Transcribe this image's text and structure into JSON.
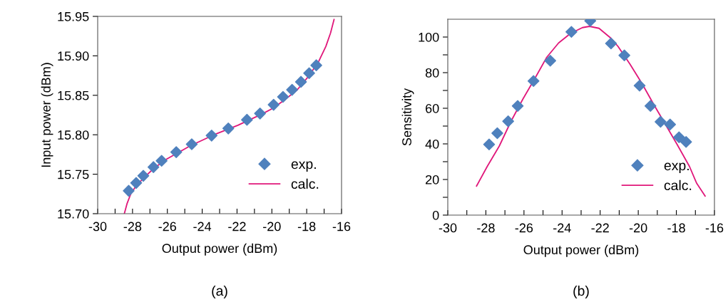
{
  "chart_data": [
    {
      "type": "scatter",
      "xlabel": "Output power (dBm)",
      "ylabel": "Input power (dBm)",
      "annotations": [
        "(a)"
      ],
      "xlim": [
        -30,
        -16
      ],
      "ylim": [
        15.7,
        15.95
      ],
      "xticks": [
        -30,
        {
          "value": -29,
          "label": null
        },
        -28,
        {
          "value": -27,
          "label": null
        },
        -26,
        {
          "value": -25,
          "label": null
        },
        -24,
        {
          "value": -23,
          "label": null
        },
        -22,
        {
          "value": -21,
          "label": null
        },
        -20,
        {
          "value": -19,
          "label": null
        },
        -18,
        {
          "value": -17,
          "label": null
        },
        -16
      ],
      "yticks": [
        {
          "value": 15.7,
          "label": "15.70"
        },
        15.75,
        {
          "value": 15.8,
          "label": "15.80"
        },
        15.85,
        {
          "value": 15.9,
          "label": "15.90"
        },
        15.95
      ],
      "grid": false,
      "legend": "bottom right",
      "series": [
        {
          "name": "exp.",
          "marker": "diamond",
          "color": "#4f81bd",
          "x": [
            -28.22,
            -27.79,
            -27.38,
            -26.8,
            -26.33,
            -25.49,
            -24.6,
            -23.46,
            -22.5,
            -21.43,
            -20.68,
            -19.9,
            -19.36,
            -18.84,
            -18.33,
            -17.86,
            -17.45
          ],
          "values": [
            15.729,
            15.739,
            15.748,
            15.759,
            15.767,
            15.778,
            15.788,
            15.799,
            15.808,
            15.819,
            15.827,
            15.838,
            15.848,
            15.857,
            15.867,
            15.878,
            15.888
          ]
        },
        {
          "name": "calc.",
          "type": "line",
          "marker": "none",
          "line_style": "solid",
          "color": "#e0177a",
          "x": [
            -28.47,
            -28.31,
            -28.1,
            -27.83,
            -27.42,
            -26.8,
            -26.05,
            -24.69,
            -23.32,
            -21.95,
            -20.59,
            -19.9,
            -19.22,
            -18.54,
            -17.86,
            -17.31,
            -16.9,
            -16.63,
            -16.43
          ],
          "values": [
            15.7,
            15.713,
            15.725,
            15.734,
            15.744,
            15.757,
            15.769,
            15.786,
            15.8,
            15.812,
            15.826,
            15.834,
            15.845,
            15.857,
            15.875,
            15.893,
            15.912,
            15.929,
            15.946
          ]
        }
      ]
    },
    {
      "type": "scatter",
      "xlabel": "Output power (dBm)",
      "ylabel": "Sensitivity",
      "annotations": [
        "(b)"
      ],
      "xlim": [
        -30,
        -16
      ],
      "ylim": [
        0,
        110
      ],
      "xticks": [
        -30,
        {
          "value": -29,
          "label": null
        },
        -28,
        {
          "value": -27,
          "label": null
        },
        -26,
        {
          "value": -25,
          "label": null
        },
        -24,
        {
          "value": -23,
          "label": null
        },
        -22,
        {
          "value": -21,
          "label": null
        },
        -20,
        {
          "value": -19,
          "label": null
        },
        -18,
        {
          "value": -17,
          "label": null
        },
        -16
      ],
      "yticks": [
        0,
        {
          "value": 10,
          "label": null
        },
        20,
        {
          "value": 30,
          "label": null
        },
        40,
        {
          "value": 50,
          "label": null
        },
        60,
        {
          "value": 70,
          "label": null
        },
        80,
        {
          "value": 90,
          "label": null
        },
        100
      ],
      "grid": false,
      "legend": "bottom right",
      "series": [
        {
          "name": "exp.",
          "marker": "diamond",
          "color": "#4f81bd",
          "x": [
            -27.83,
            -27.4,
            -26.83,
            -26.33,
            -25.5,
            -24.62,
            -23.51,
            -22.52,
            -21.43,
            -20.73,
            -19.93,
            -19.36,
            -18.83,
            -18.33,
            -17.86,
            -17.49
          ],
          "values": [
            39.7,
            46.0,
            52.7,
            61.3,
            75.3,
            86.7,
            102.9,
            109.1,
            96.4,
            89.7,
            72.7,
            61.3,
            52.4,
            50.9,
            43.7,
            41.1
          ]
        },
        {
          "name": "calc.",
          "type": "line",
          "marker": "none",
          "line_style": "solid",
          "color": "#e0177a",
          "x": [
            -28.49,
            -27.93,
            -27.3,
            -26.68,
            -26.05,
            -25.43,
            -24.8,
            -24.18,
            -23.56,
            -22.93,
            -22.56,
            -22.06,
            -21.43,
            -21.06,
            -20.43,
            -19.81,
            -19.18,
            -18.56,
            -17.94,
            -17.31,
            -16.94,
            -16.49
          ],
          "values": [
            16.3,
            27.3,
            38.7,
            52.7,
            65.3,
            76.7,
            88.7,
            96.7,
            102,
            105.3,
            106,
            104.9,
            99.3,
            94.7,
            84.7,
            74,
            62,
            50.7,
            39.3,
            27.3,
            18,
            10.7
          ]
        }
      ]
    }
  ]
}
